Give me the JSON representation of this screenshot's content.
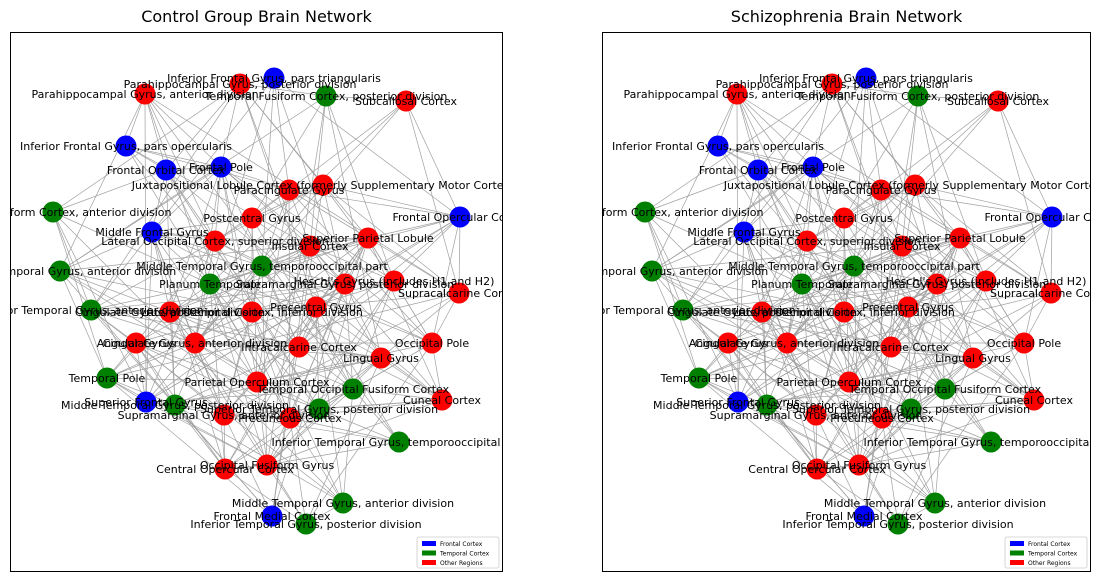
{
  "panels": [
    {
      "id": "control",
      "title": "Control Group Brain Network"
    },
    {
      "id": "schizo",
      "title": "Schizophrenia Brain Network"
    }
  ],
  "legend": [
    {
      "label": "Frontal Cortex",
      "color": "#0000ff"
    },
    {
      "label": "Temporal Cortex",
      "color": "#008000"
    },
    {
      "label": "Other Regions",
      "color": "#ff0000"
    }
  ],
  "colors": {
    "frontal": "#0000ff",
    "temporal": "#008000",
    "other": "#ff0000",
    "edge": "#a0a0a0"
  },
  "nodes": [
    {
      "label": "Inferior Frontal Gyrus, pars triangularis",
      "group": "frontal"
    },
    {
      "label": "Parahippocampal Gyrus, posterior division",
      "group": "other"
    },
    {
      "label": "Temporal Fusiform Cortex, posterior division",
      "group": "temporal"
    },
    {
      "label": "Subcallosal Cortex",
      "group": "other"
    },
    {
      "label": "Parahippocampal Gyrus, anterior division",
      "group": "other"
    },
    {
      "label": "Inferior Frontal Gyrus, pars opercularis",
      "group": "frontal"
    },
    {
      "label": "Frontal Pole",
      "group": "frontal"
    },
    {
      "label": "Frontal Orbital Cortex",
      "group": "frontal"
    },
    {
      "label": "Juxtapositional Lobule Cortex (formerly Supplementary Motor Cortex)",
      "group": "other"
    },
    {
      "label": "Paracingulate Gyrus",
      "group": "other"
    },
    {
      "label": "Insular Cortex",
      "group": "other"
    },
    {
      "label": "Temporal Fusiform Cortex, anterior division",
      "group": "temporal"
    },
    {
      "label": "Frontal Opercular Cortex",
      "group": "frontal"
    },
    {
      "label": "Postcentral Gyrus",
      "group": "other"
    },
    {
      "label": "Middle Frontal Gyrus",
      "group": "frontal"
    },
    {
      "label": "Lateral Occipital Cortex, superior division",
      "group": "other"
    },
    {
      "label": "Superior Parietal Lobule",
      "group": "other"
    },
    {
      "label": "Middle Temporal Gyrus, temporooccipital part",
      "group": "temporal"
    },
    {
      "label": "Superior Temporal Gyrus, anterior division",
      "group": "temporal"
    },
    {
      "label": "Planum Temporale",
      "group": "temporal"
    },
    {
      "label": "Supramarginal Gyrus, posterior division",
      "group": "other"
    },
    {
      "label": "Heschl's Gyrus (includes H1 and H2)",
      "group": "other"
    },
    {
      "label": "Supracalcarine Cortex",
      "group": "other"
    },
    {
      "label": "Inferior Temporal Gyrus, anterior division",
      "group": "temporal"
    },
    {
      "label": "Cingulate Gyrus, posterior division",
      "group": "other"
    },
    {
      "label": "Lateral Occipital Cortex, inferior division",
      "group": "other"
    },
    {
      "label": "Precentral Gyrus",
      "group": "other"
    },
    {
      "label": "Angular Gyrus",
      "group": "other"
    },
    {
      "label": "Cingulate Gyrus, anterior division",
      "group": "other"
    },
    {
      "label": "Intracalcarine Cortex",
      "group": "other"
    },
    {
      "label": "Occipital Pole",
      "group": "other"
    },
    {
      "label": "Lingual Gyrus",
      "group": "other"
    },
    {
      "label": "Temporal Pole",
      "group": "temporal"
    },
    {
      "label": "Parietal Operculum Cortex",
      "group": "other"
    },
    {
      "label": "Temporal Occipital Fusiform Cortex",
      "group": "temporal"
    },
    {
      "label": "Superior Frontal Gyrus",
      "group": "frontal"
    },
    {
      "label": "Middle Temporal Gyrus, posterior division",
      "group": "temporal"
    },
    {
      "label": "Cuneal Cortex",
      "group": "other"
    },
    {
      "label": "Supramarginal Gyrus, anterior division",
      "group": "other"
    },
    {
      "label": "Superior Temporal Gyrus, posterior division",
      "group": "temporal"
    },
    {
      "label": "Precuneous Cortex",
      "group": "other"
    },
    {
      "label": "Inferior Temporal Gyrus, temporooccipital part",
      "group": "temporal"
    },
    {
      "label": "Central Opercular Cortex",
      "group": "other"
    },
    {
      "label": "Occipital Fusiform Gyrus",
      "group": "other"
    },
    {
      "label": "Middle Temporal Gyrus, anterior division",
      "group": "temporal"
    },
    {
      "label": "Frontal Medial Cortex",
      "group": "frontal"
    },
    {
      "label": "Inferior Temporal Gyrus, posterior division",
      "group": "temporal"
    }
  ]
}
